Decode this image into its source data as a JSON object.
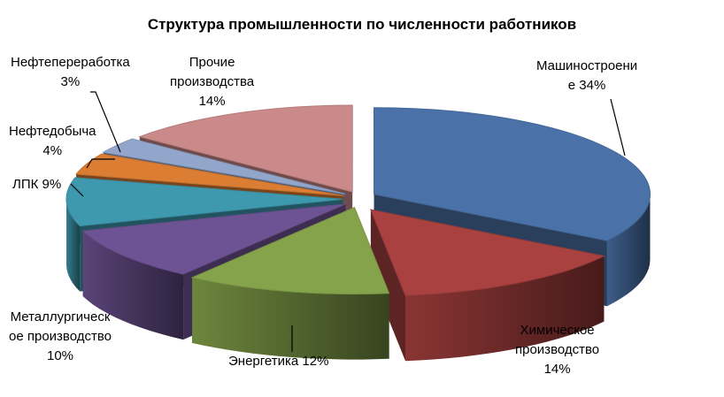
{
  "chart_data": {
    "type": "pie",
    "variant": "3d-exploded",
    "title": "Структура промышленности по численности работников",
    "slices": [
      {
        "name": "Машиностроение",
        "value": 34,
        "color": "#4A72A8",
        "label_lines": [
          "Машиностроени",
          "е 34%"
        ]
      },
      {
        "name": "Химическое производство",
        "value": 14,
        "color": "#A8413F",
        "label_lines": [
          "Химическое",
          "производство",
          "14%"
        ]
      },
      {
        "name": "Энергетика",
        "value": 12,
        "color": "#85A34B",
        "label_lines": [
          "Энергетика 12%"
        ]
      },
      {
        "name": "Металлургическое производство",
        "value": 10,
        "color": "#6E5394",
        "label_lines": [
          "Металлургическ",
          "ое производство",
          "10%"
        ]
      },
      {
        "name": "ЛПК",
        "value": 9,
        "color": "#3E99AE",
        "label_lines": [
          "ЛПК 9%"
        ]
      },
      {
        "name": "Нефтедобыча",
        "value": 4,
        "color": "#DB7D33",
        "label_lines": [
          "Нефтедобыча",
          "4%"
        ]
      },
      {
        "name": "Нефтепереработка",
        "value": 3,
        "color": "#92A6CC",
        "label_lines": [
          "Нефтепереработка",
          "3%"
        ]
      },
      {
        "name": "Прочие производства",
        "value": 14,
        "color": "#C98A89",
        "label_lines": [
          "Прочие",
          "производства",
          "14%"
        ]
      }
    ]
  }
}
